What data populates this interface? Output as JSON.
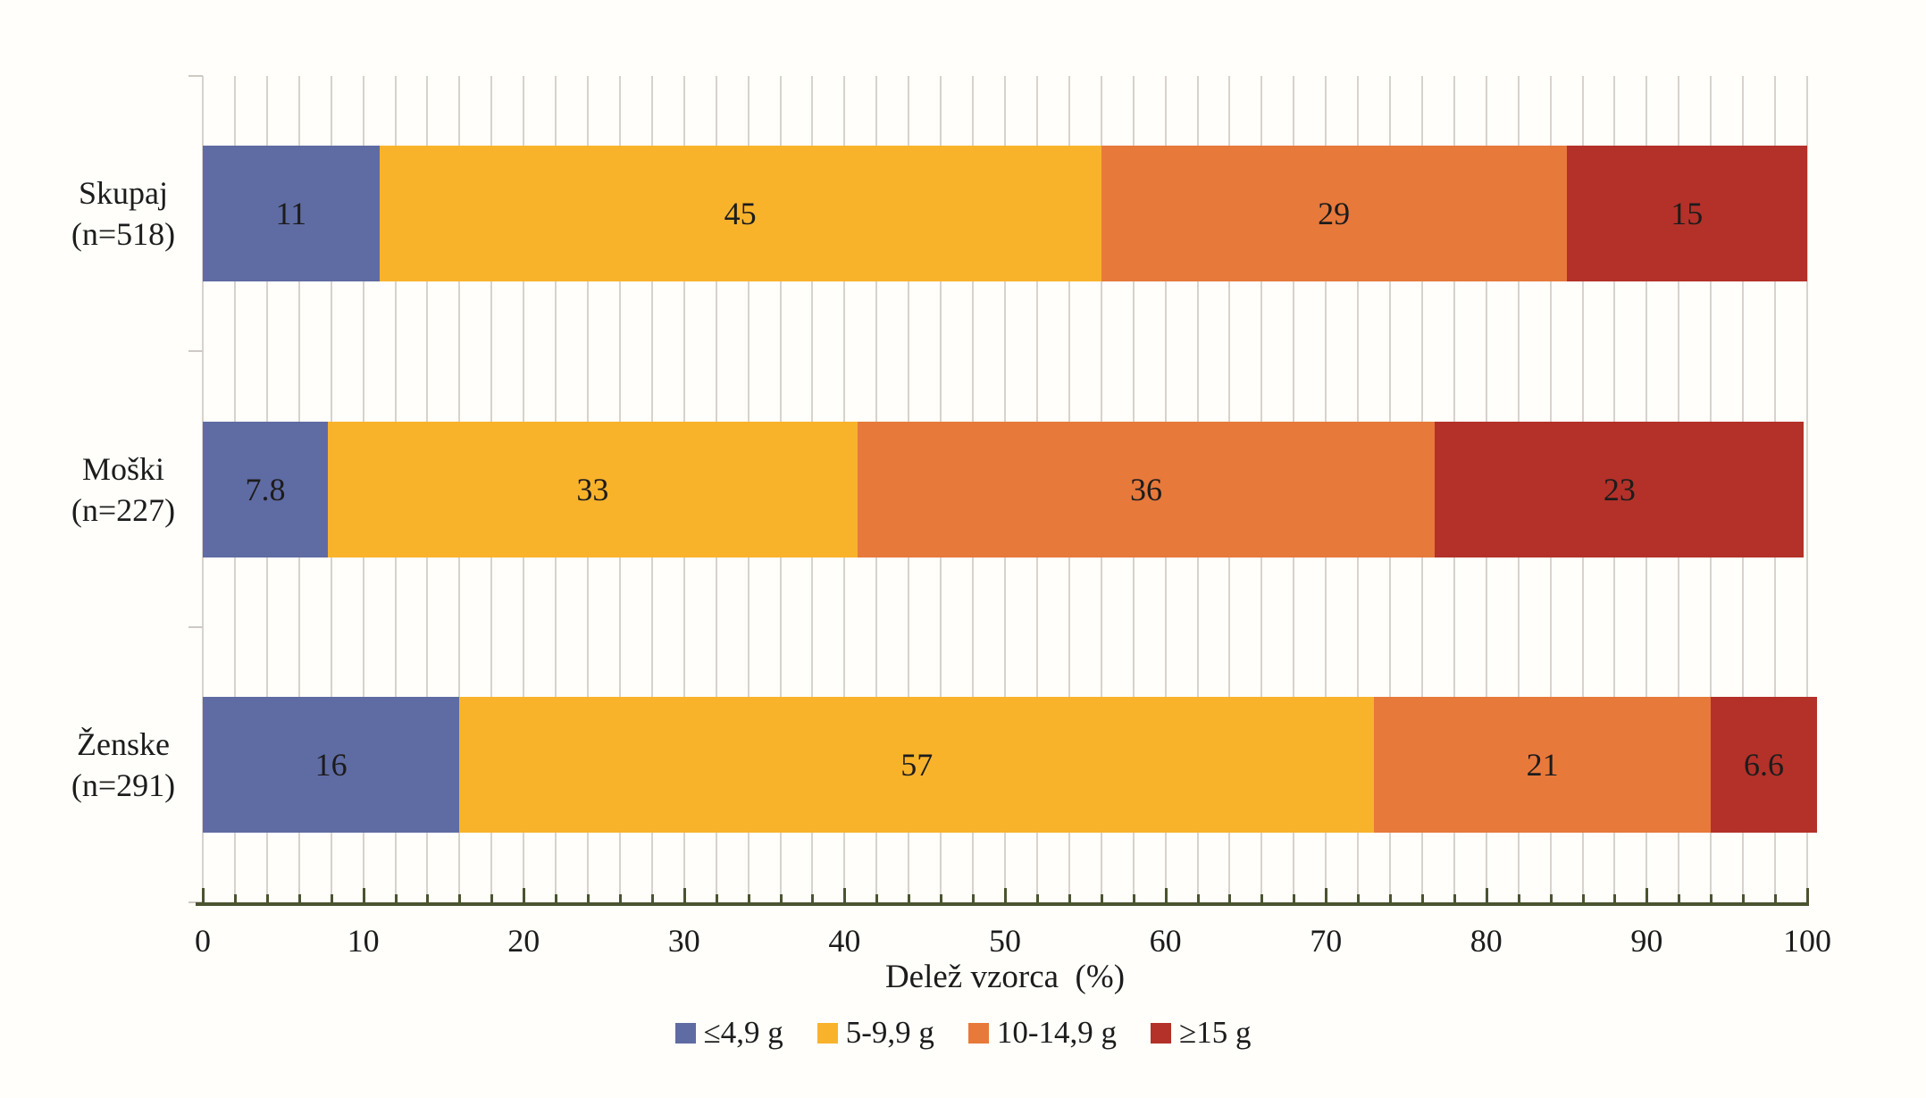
{
  "chart_data": {
    "type": "bar",
    "orientation": "horizontal",
    "stacked": true,
    "title": "",
    "xlabel": "Delež vzorca  (%)",
    "ylabel": "",
    "xlim": [
      0,
      100
    ],
    "x_major_ticks": [
      0,
      10,
      20,
      30,
      40,
      50,
      60,
      70,
      80,
      90,
      100
    ],
    "x_minor_tick_step": 2,
    "grid": "vertical minor gridlines on",
    "legend_position": "bottom-center",
    "rows": [
      {
        "label": "Skupaj",
        "sublabel": "(n=518)"
      },
      {
        "label": "Moški",
        "sublabel": "(n=227)"
      },
      {
        "label": "Ženske",
        "sublabel": "(n=291)"
      }
    ],
    "series": [
      {
        "name": "≤4,9 g",
        "color": "#5F6BA3",
        "values": [
          11,
          7.8,
          16
        ]
      },
      {
        "name": "5-9,9 g",
        "color": "#F8B32B",
        "values": [
          45,
          33,
          57
        ]
      },
      {
        "name": "10-14,9 g",
        "color": "#E7793B",
        "values": [
          29,
          36,
          21
        ]
      },
      {
        "name": "≥15 g",
        "color": "#B33129",
        "values": [
          15,
          23,
          6.6
        ]
      }
    ],
    "style": {
      "background": "#FFFEFA",
      "gridline_color": "#D8D2CC",
      "axis_line_color": "#4A5430",
      "category_tick_color": "#CFC9C3",
      "text_color": "#1C1C1C"
    }
  }
}
